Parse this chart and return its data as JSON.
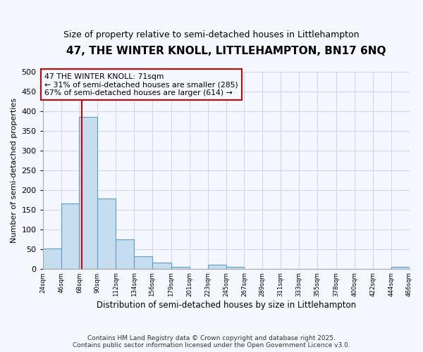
{
  "title": "47, THE WINTER KNOLL, LITTLEHAMPTON, BN17 6NQ",
  "subtitle": "Size of property relative to semi-detached houses in Littlehampton",
  "xlabel": "Distribution of semi-detached houses by size in Littlehampton",
  "ylabel": "Number of semi-detached properties",
  "footnote1": "Contains HM Land Registry data © Crown copyright and database right 2025.",
  "footnote2": "Contains public sector information licensed under the Open Government Licence v3.0.",
  "annotation_line1": "47 THE WINTER KNOLL: 71sqm",
  "annotation_line2": "← 31% of semi-detached houses are smaller (285)",
  "annotation_line3": "67% of semi-detached houses are larger (614) →",
  "property_sqm": 71,
  "bar_edges": [
    24,
    46,
    68,
    90,
    112,
    134,
    156,
    179,
    201,
    223,
    245,
    267,
    289,
    311,
    333,
    355,
    378,
    400,
    422,
    444,
    466
  ],
  "bar_heights": [
    52,
    165,
    385,
    178,
    75,
    32,
    15,
    5,
    0,
    10,
    5,
    0,
    0,
    0,
    0,
    0,
    0,
    0,
    0,
    5
  ],
  "bar_color": "#c6dcef",
  "bar_edge_color": "#5a9ec9",
  "red_line_color": "#cc0000",
  "annotation_box_color": "#cc0000",
  "background_color": "#f5f7ff",
  "plot_bg_color": "#f5f7ff",
  "grid_color": "#d0d8e8",
  "ylim": [
    0,
    500
  ],
  "yticks": [
    0,
    50,
    100,
    150,
    200,
    250,
    300,
    350,
    400,
    450,
    500
  ]
}
